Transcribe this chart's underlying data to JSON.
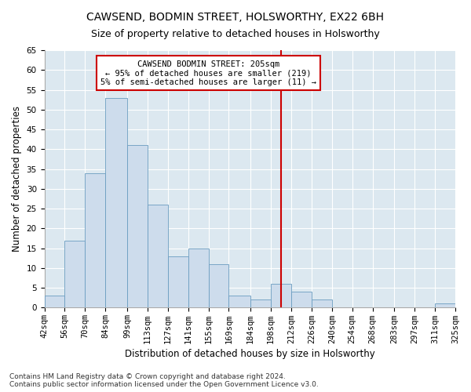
{
  "title": "CAWSEND, BODMIN STREET, HOLSWORTHY, EX22 6BH",
  "subtitle": "Size of property relative to detached houses in Holsworthy",
  "xlabel": "Distribution of detached houses by size in Holsworthy",
  "ylabel": "Number of detached properties",
  "bins": [
    "42sqm",
    "56sqm",
    "70sqm",
    "84sqm",
    "99sqm",
    "113sqm",
    "127sqm",
    "141sqm",
    "155sqm",
    "169sqm",
    "184sqm",
    "198sqm",
    "212sqm",
    "226sqm",
    "240sqm",
    "254sqm",
    "268sqm",
    "283sqm",
    "297sqm",
    "311sqm",
    "325sqm"
  ],
  "bin_edges": [
    42,
    56,
    70,
    84,
    99,
    113,
    127,
    141,
    155,
    169,
    184,
    198,
    212,
    226,
    240,
    254,
    268,
    283,
    297,
    311,
    325
  ],
  "values": [
    3,
    17,
    34,
    53,
    41,
    26,
    13,
    15,
    11,
    3,
    2,
    6,
    4,
    2,
    0,
    0,
    0,
    0,
    0,
    1
  ],
  "bar_color": "#cddcec",
  "bar_edge_color": "#6a9cc0",
  "vline_x": 205,
  "vline_color": "#cc0000",
  "annotation_title": "CAWSEND BODMIN STREET: 205sqm",
  "annotation_line1": "← 95% of detached houses are smaller (219)",
  "annotation_line2": "5% of semi-detached houses are larger (11) →",
  "annotation_box_color": "#cc0000",
  "ylim": [
    0,
    65
  ],
  "yticks": [
    0,
    5,
    10,
    15,
    20,
    25,
    30,
    35,
    40,
    45,
    50,
    55,
    60,
    65
  ],
  "footer_line1": "Contains HM Land Registry data © Crown copyright and database right 2024.",
  "footer_line2": "Contains public sector information licensed under the Open Government Licence v3.0.",
  "fig_bg_color": "#ffffff",
  "plot_bg_color": "#dce8f0",
  "grid_color": "#ffffff",
  "title_fontsize": 10,
  "subtitle_fontsize": 9,
  "axis_label_fontsize": 8.5,
  "tick_fontsize": 7.5,
  "footer_fontsize": 6.5,
  "annotation_fontsize": 7.5
}
